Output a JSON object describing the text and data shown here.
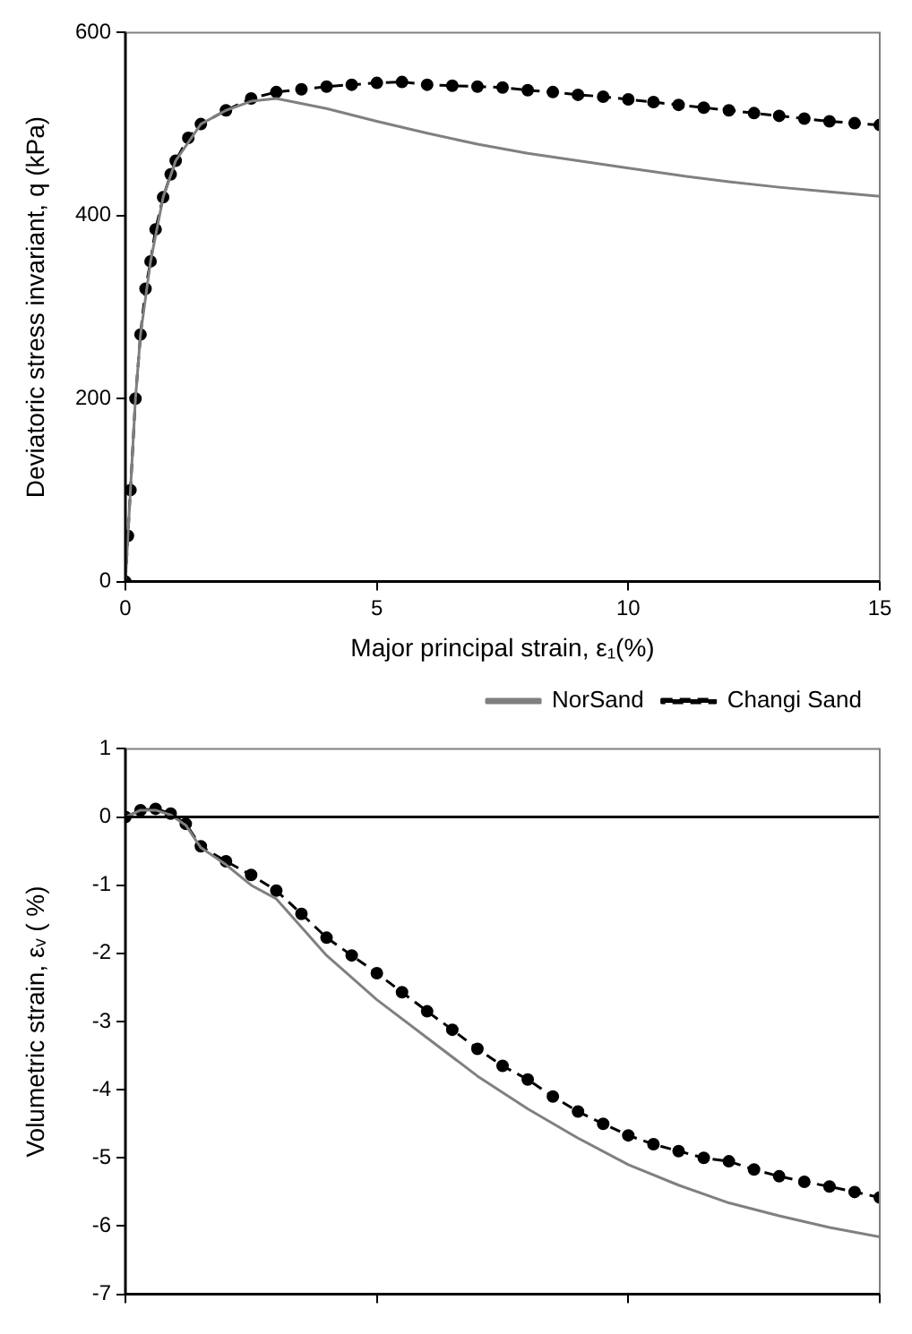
{
  "chart_data": [
    {
      "type": "line",
      "xlabel": "Major principal strain, ε₁(%)",
      "ylabel": "Deviatoric stress invariant, q (kPa)",
      "xlim": [
        0,
        15
      ],
      "xticks": [
        0,
        5,
        10,
        15
      ],
      "ylim": [
        0,
        600
      ],
      "yticks": [
        0,
        200,
        400,
        600
      ],
      "grid": false,
      "legend": "bottom right",
      "series": [
        {
          "name": "NorSand",
          "color": "#808080",
          "marker": "none",
          "line_style": "solid",
          "x": [
            0,
            0.1,
            0.2,
            0.3,
            0.5,
            0.75,
            1,
            1.5,
            2,
            2.5,
            3,
            4,
            5,
            6,
            7,
            8,
            9,
            10,
            11,
            12,
            13,
            14,
            15
          ],
          "values": [
            0,
            100,
            200,
            270,
            350,
            420,
            460,
            500,
            515,
            525,
            528,
            517,
            503,
            490,
            478,
            468,
            460,
            452,
            444,
            437,
            431,
            426,
            421
          ]
        },
        {
          "name": "Changi Sand",
          "color": "#000000",
          "marker": "circle",
          "line_style": "dashed",
          "x": [
            0,
            0.05,
            0.1,
            0.2,
            0.3,
            0.4,
            0.5,
            0.6,
            0.75,
            0.9,
            1,
            1.25,
            1.5,
            2,
            2.5,
            3,
            3.5,
            4,
            4.5,
            5,
            5.5,
            6,
            6.5,
            7,
            7.5,
            8,
            8.5,
            9,
            9.5,
            10,
            10.5,
            11,
            11.5,
            12,
            12.5,
            13,
            13.5,
            14,
            14.5,
            15
          ],
          "values": [
            0,
            50,
            100,
            200,
            270,
            320,
            350,
            385,
            420,
            445,
            460,
            485,
            500,
            515,
            528,
            535,
            538,
            541,
            543,
            545,
            546,
            543,
            542,
            541,
            540,
            537,
            535,
            532,
            530,
            527,
            524,
            521,
            518,
            515,
            512,
            509,
            506,
            503,
            501,
            499
          ]
        }
      ]
    },
    {
      "type": "line",
      "ylabel": "Volumetric strain, εᵥ ( %)",
      "xlim": [
        0,
        15
      ],
      "xticks": [
        0,
        5,
        10,
        15
      ],
      "ylim": [
        -7,
        1
      ],
      "yticks": [
        -7,
        -6,
        -5,
        -4,
        -3,
        -2,
        -1,
        0,
        1
      ],
      "grid": false,
      "tick_labels": "y",
      "ref_lines": [
        {
          "axis": "y",
          "value": 0,
          "color": "#000000"
        }
      ],
      "series": [
        {
          "color": "#808080",
          "marker": "none",
          "line_style": "solid",
          "x": [
            0,
            0.3,
            0.6,
            0.9,
            1.2,
            1.5,
            2,
            2.5,
            3,
            4,
            5,
            6,
            7,
            8,
            9,
            10,
            11,
            12,
            13,
            14,
            15
          ],
          "values": [
            0,
            0.1,
            0.1,
            0.03,
            -0.12,
            -0.45,
            -0.7,
            -1.0,
            -1.2,
            -2.03,
            -2.68,
            -3.24,
            -3.8,
            -4.28,
            -4.71,
            -5.1,
            -5.4,
            -5.66,
            -5.85,
            -6.02,
            -6.16
          ]
        },
        {
          "color": "#000000",
          "marker": "circle",
          "line_style": "dashed",
          "x": [
            0,
            0.3,
            0.6,
            0.9,
            1.2,
            1.5,
            2,
            2.5,
            3,
            3.5,
            4,
            4.5,
            5,
            5.5,
            6,
            6.5,
            7,
            7.5,
            8,
            8.5,
            9,
            9.5,
            10,
            10.5,
            11,
            11.5,
            12,
            12.5,
            13,
            13.5,
            14,
            14.5,
            15
          ],
          "values": [
            0,
            0.1,
            0.12,
            0.05,
            -0.1,
            -0.43,
            -0.65,
            -0.85,
            -1.08,
            -1.42,
            -1.77,
            -2.03,
            -2.29,
            -2.57,
            -2.85,
            -3.12,
            -3.4,
            -3.65,
            -3.85,
            -4.1,
            -4.32,
            -4.5,
            -4.67,
            -4.8,
            -4.9,
            -5.0,
            -5.05,
            -5.17,
            -5.27,
            -5.35,
            -5.42,
            -5.5,
            -5.58
          ]
        }
      ]
    }
  ]
}
